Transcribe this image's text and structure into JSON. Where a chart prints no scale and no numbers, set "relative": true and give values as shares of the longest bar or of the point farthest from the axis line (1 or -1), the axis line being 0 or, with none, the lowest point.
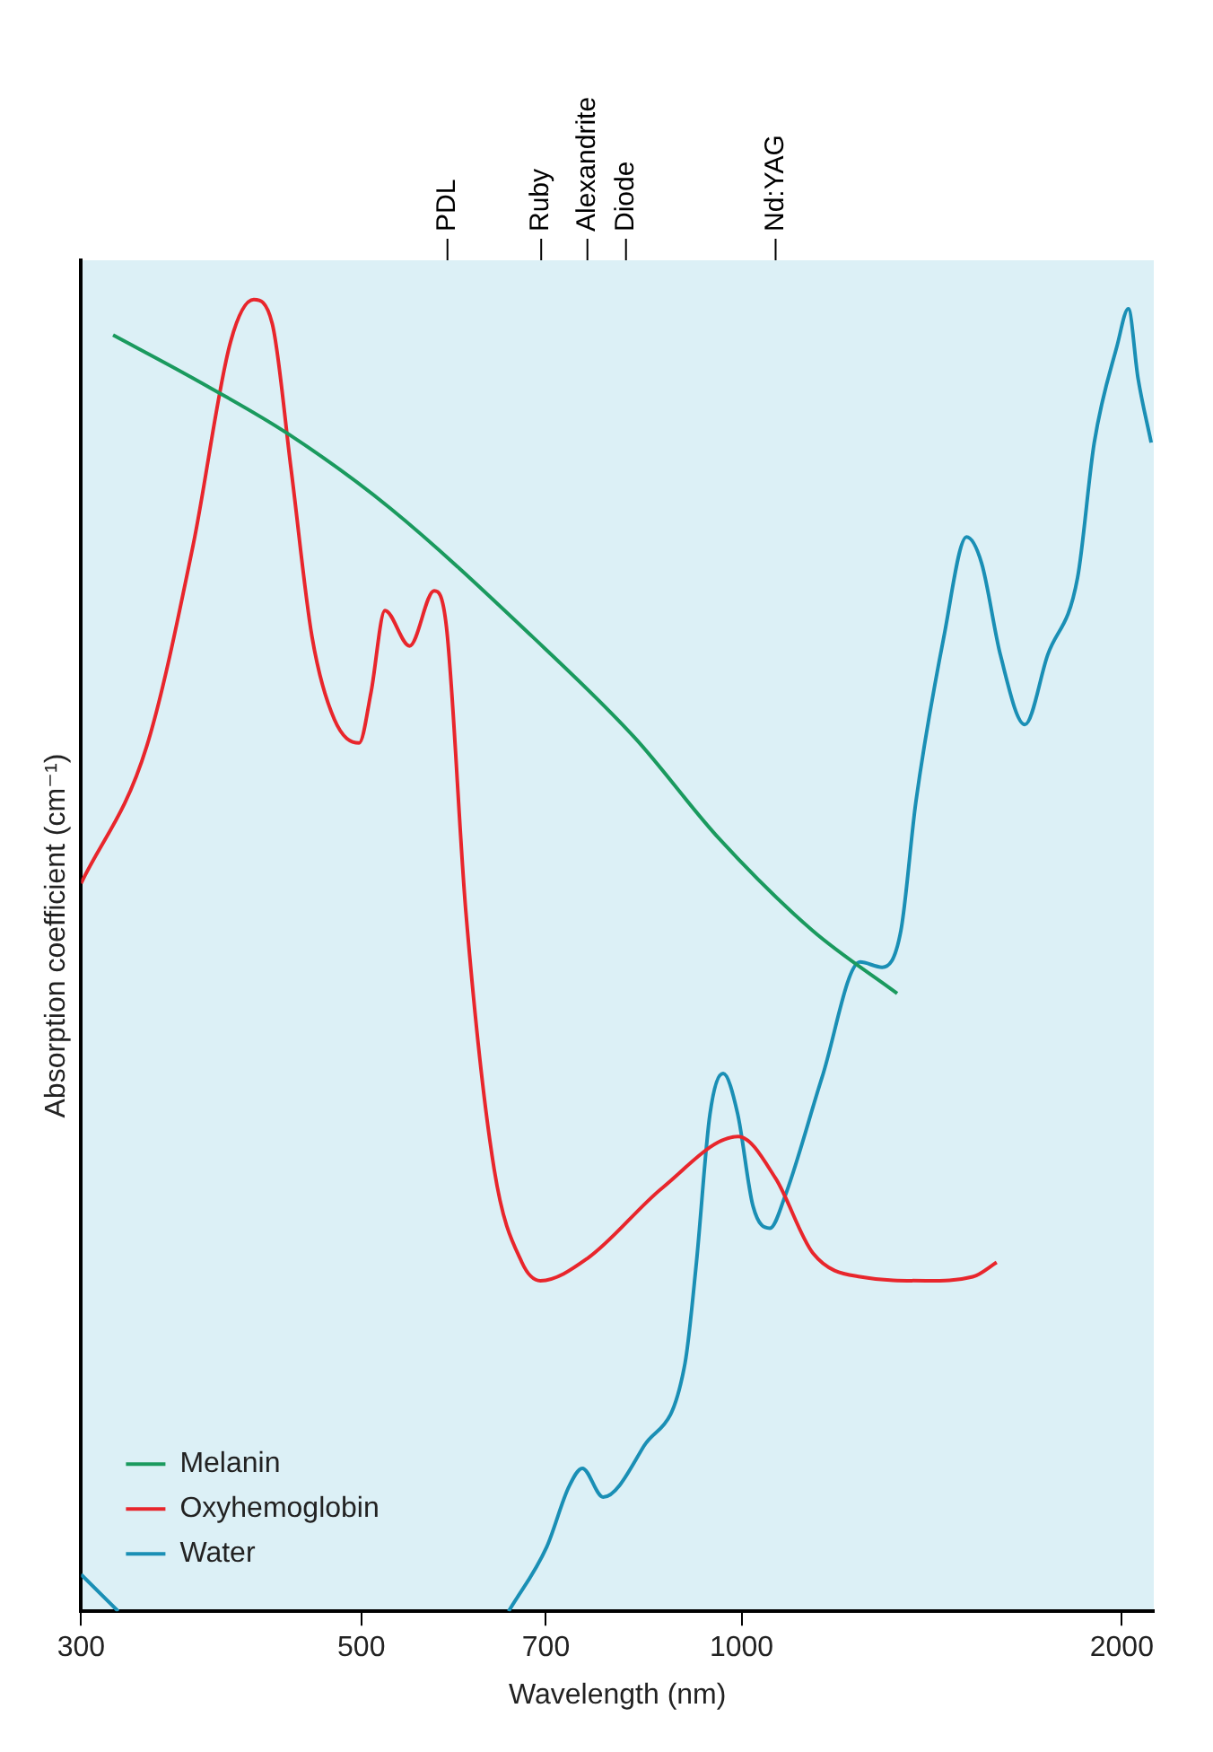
{
  "chart_data": {
    "type": "line",
    "xlabel": "Wavelength (nm)",
    "ylabel": "Absorption coefficient (cm⁻¹)",
    "relative": true,
    "log": "x",
    "grid": false,
    "legend": "bottom left",
    "marker": "none",
    "xlim": [
      300,
      2120
    ],
    "xticks": [
      300,
      500,
      700,
      1000,
      2000
    ],
    "ref_lines": [
      {
        "axis": "x",
        "value": 585,
        "label": "PDL"
      },
      {
        "axis": "x",
        "value": 694,
        "label": "Ruby"
      },
      {
        "axis": "x",
        "value": 755,
        "label": "Alexandrite"
      },
      {
        "axis": "x",
        "value": 810,
        "label": "Diode"
      },
      {
        "axis": "x",
        "value": 1064,
        "label": "Nd:YAG"
      }
    ],
    "series": [
      {
        "name": "Melanin",
        "color": "#1a9a5e",
        "x": [
          318,
          368,
          437,
          527,
          683,
          823,
          960,
          1138,
          1328
        ],
        "values": [
          0.973,
          0.94,
          0.898,
          0.841,
          0.743,
          0.666,
          0.589,
          0.519,
          0.471
        ]
      },
      {
        "name": "Oxyhemoglobin",
        "color": "#e8262c",
        "x": [
          300,
          338,
          368,
          394,
          411,
          425,
          440,
          457,
          476,
          498,
          509,
          522,
          546,
          571,
          584,
          605,
          637,
          670,
          693,
          755,
          866,
          994,
          1064,
          1139,
          1241,
          1400,
          1524,
          1592
        ],
        "values": [
          0.555,
          0.659,
          0.813,
          0.968,
          1.0,
          0.982,
          0.87,
          0.743,
          0.68,
          0.662,
          0.701,
          0.763,
          0.736,
          0.778,
          0.75,
          0.533,
          0.337,
          0.266,
          0.252,
          0.269,
          0.323,
          0.362,
          0.33,
          0.273,
          0.255,
          0.252,
          0.255,
          0.266
        ]
      },
      {
        "name": "Water",
        "color": "#1a8fb5",
        "x": [
          300,
          321,
          500,
          654,
          701,
          730,
          748,
          777,
          837,
          902,
          921,
          944,
          967,
          993,
          1021,
          1053,
          1082,
          1158,
          1241,
          1292,
          1337,
          1374,
          1446,
          1507,
          1549,
          1603,
          1676,
          1747,
          1845,
          1902,
          1983,
          2024,
          2060,
          2110
        ],
        "values": [
          0.028,
          0,
          null,
          0,
          0.049,
          0.095,
          0.109,
          0.087,
          0.126,
          0.189,
          0.266,
          0.379,
          0.41,
          0.379,
          0.309,
          0.292,
          0.316,
          0.407,
          0.495,
          0.491,
          0.519,
          0.617,
          0.743,
          0.819,
          0.799,
          0.729,
          0.676,
          0.729,
          0.788,
          0.891,
          0.965,
          0.993,
          0.94,
          0.891
        ]
      }
    ]
  }
}
